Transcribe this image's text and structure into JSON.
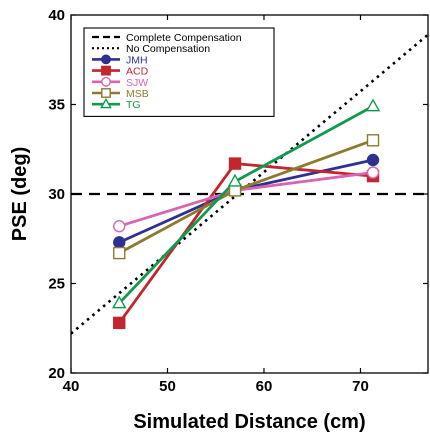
{
  "chart_data": {
    "type": "line",
    "xlabel": "Simulated Distance (cm)",
    "ylabel": "PSE (deg)",
    "xlim": [
      40,
      77
    ],
    "ylim": [
      20,
      40
    ],
    "xticks": [
      40,
      50,
      60,
      70
    ],
    "yticks": [
      20,
      25,
      30,
      35,
      40
    ],
    "xtick_labels": [
      "40",
      "50",
      "60",
      "70"
    ],
    "ytick_labels": [
      "20",
      "25",
      "30",
      "35",
      "40"
    ],
    "grid": false,
    "legend_position": "top-left",
    "reference_lines": [
      {
        "name": "Complete Compensation",
        "style": "dashed",
        "color": "#000000",
        "x": [
          40,
          77
        ],
        "y": [
          30,
          30
        ]
      },
      {
        "name": "No Compensation",
        "style": "dotted",
        "color": "#000000",
        "x": [
          40,
          77
        ],
        "y": [
          22.2,
          38.9
        ]
      }
    ],
    "x": [
      45,
      57,
      71.3
    ],
    "series": [
      {
        "name": "JMH",
        "color": "#2e3192",
        "marker": "circle",
        "filled": true,
        "values": [
          27.3,
          30.2,
          31.9
        ]
      },
      {
        "name": "ACD",
        "color": "#c1272d",
        "marker": "square",
        "filled": true,
        "values": [
          22.8,
          31.7,
          31.0
        ]
      },
      {
        "name": "SJW",
        "color": "#d765b4",
        "marker": "circle",
        "filled": false,
        "values": [
          28.2,
          30.2,
          31.2
        ]
      },
      {
        "name": "MSB",
        "color": "#8c7a2e",
        "marker": "square",
        "filled": false,
        "values": [
          26.7,
          30.2,
          33.0
        ]
      },
      {
        "name": "TG",
        "color": "#0f9b4b",
        "marker": "triangle",
        "filled": false,
        "values": [
          23.9,
          30.7,
          34.9
        ]
      }
    ]
  }
}
